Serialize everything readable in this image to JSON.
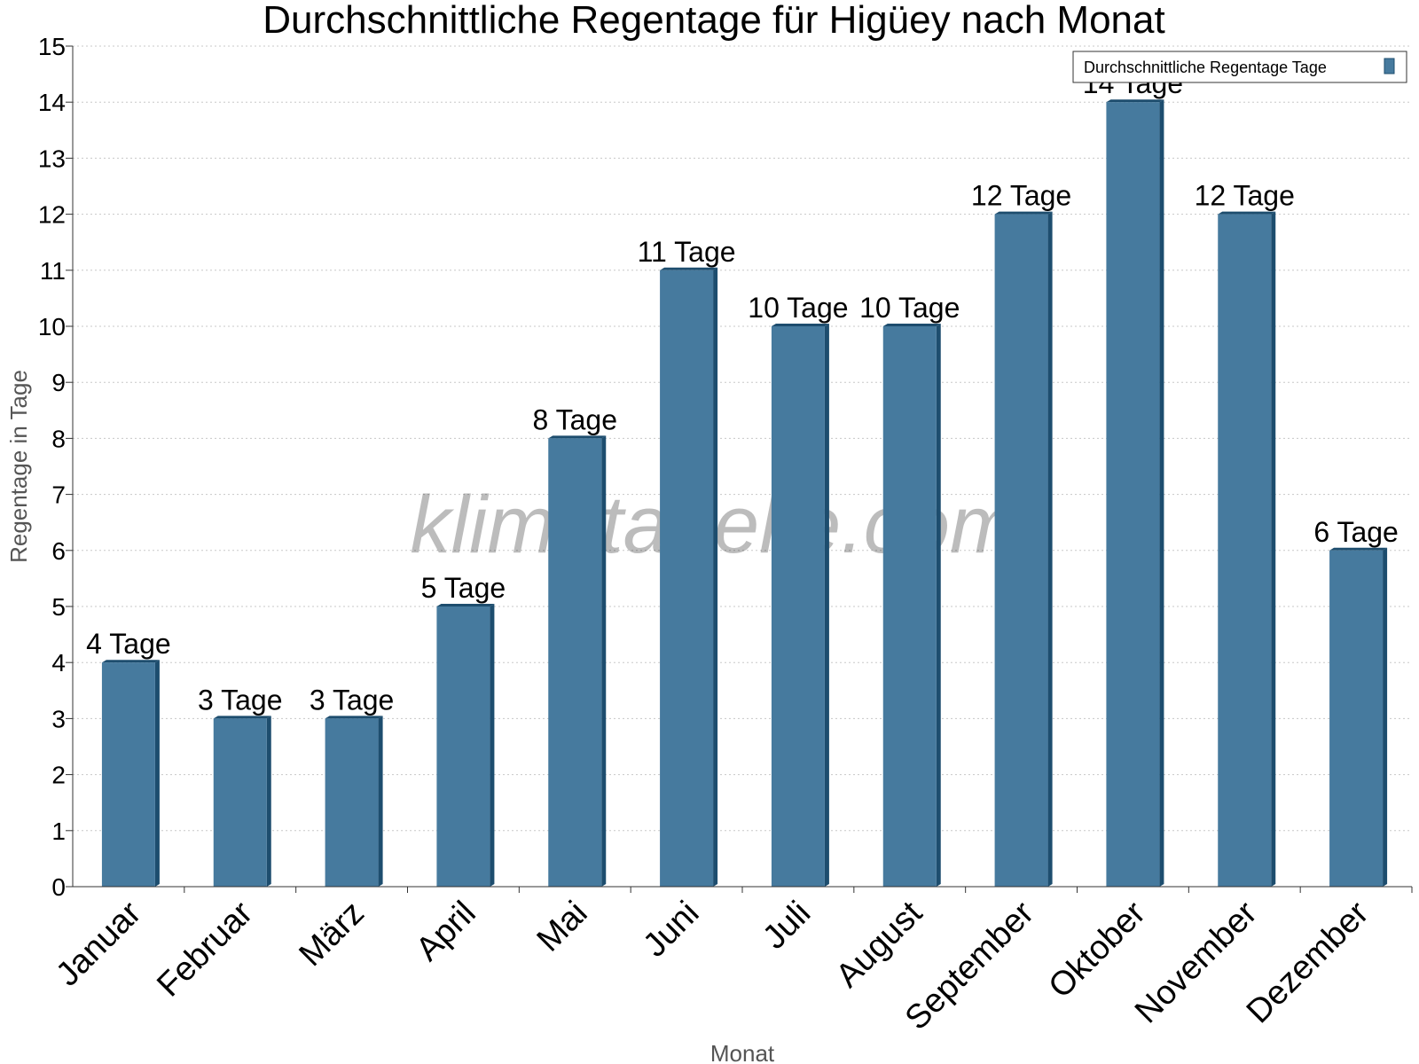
{
  "chart_data": {
    "type": "bar",
    "title": "Durchschnittliche Regentage für Higüey nach Monat",
    "xlabel": "Monat",
    "ylabel": "Regentage in Tage",
    "ylim": [
      0,
      15
    ],
    "yticks": [
      0,
      1,
      2,
      3,
      4,
      5,
      6,
      7,
      8,
      9,
      10,
      11,
      12,
      13,
      14,
      15
    ],
    "grid": true,
    "legend_position": "top-right",
    "categories": [
      "Januar",
      "Februar",
      "März",
      "April",
      "Mai",
      "Juni",
      "Juli",
      "August",
      "September",
      "Oktober",
      "November",
      "Dezember"
    ],
    "series": [
      {
        "name": "Durchschnittliche Regentage Tage",
        "values": [
          4,
          3,
          3,
          5,
          8,
          11,
          10,
          10,
          12,
          14,
          12,
          6
        ],
        "labels": [
          "4 Tage",
          "3 Tage",
          "3 Tage",
          "5 Tage",
          "8 Tage",
          "11 Tage",
          "10 Tage",
          "10 Tage",
          "12 Tage",
          "14 Tage",
          "12 Tage",
          "6 Tage"
        ],
        "color": "#467a9e",
        "side_color": "#1d4d6e"
      }
    ]
  },
  "watermark": "klimatabelle.com",
  "colors": {
    "grid": "#c8c8c8",
    "axis": "#333333"
  }
}
